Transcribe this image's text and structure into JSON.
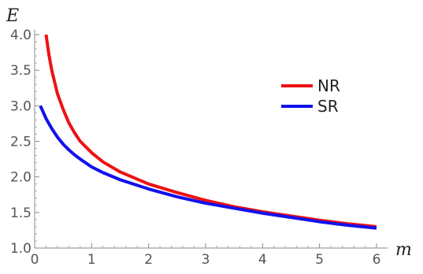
{
  "chart_data": {
    "type": "line",
    "title": "",
    "xlabel": "m",
    "ylabel": "E",
    "xlim": [
      0,
      6
    ],
    "ylim": [
      1.0,
      4.0
    ],
    "x_ticks": [
      "0",
      "1",
      "2",
      "3",
      "4",
      "5",
      "6"
    ],
    "y_ticks": [
      "1.0",
      "1.5",
      "2.0",
      "2.5",
      "3.0",
      "3.5",
      "4.0"
    ],
    "legend_position": "top-right",
    "grid": false,
    "series": [
      {
        "name": "NR",
        "color": "#ee1111",
        "x": [
          0.2,
          0.25,
          0.3,
          0.4,
          0.5,
          0.6,
          0.7,
          0.8,
          1.0,
          1.2,
          1.5,
          2.0,
          2.5,
          3.0,
          3.5,
          4.0,
          4.5,
          5.0,
          5.5,
          6.0
        ],
        "y": [
          4.0,
          3.72,
          3.5,
          3.17,
          2.95,
          2.76,
          2.62,
          2.5,
          2.34,
          2.21,
          2.07,
          1.9,
          1.78,
          1.67,
          1.58,
          1.51,
          1.45,
          1.39,
          1.34,
          1.3
        ]
      },
      {
        "name": "SR",
        "color": "#1111ee",
        "x": [
          0.1,
          0.2,
          0.3,
          0.4,
          0.5,
          0.6,
          0.7,
          0.8,
          1.0,
          1.2,
          1.5,
          2.0,
          2.5,
          3.0,
          3.5,
          4.0,
          4.5,
          5.0,
          5.5,
          6.0
        ],
        "y": [
          3.0,
          2.82,
          2.68,
          2.56,
          2.46,
          2.38,
          2.31,
          2.25,
          2.14,
          2.06,
          1.96,
          1.83,
          1.72,
          1.63,
          1.56,
          1.49,
          1.43,
          1.37,
          1.32,
          1.28
        ]
      }
    ]
  }
}
